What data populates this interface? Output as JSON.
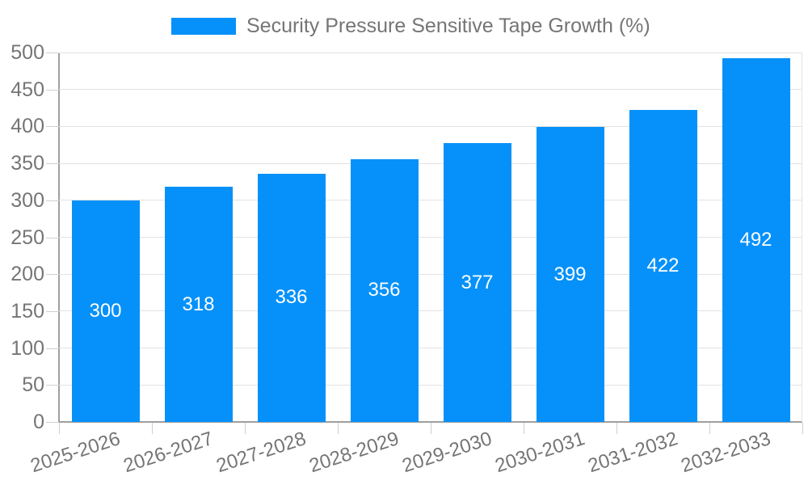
{
  "chart_data": {
    "type": "bar",
    "title": "Security Pressure Sensitive Tape Growth (%)",
    "legend": {
      "label": "Security Pressure Sensitive Tape Growth (%)",
      "position": "top"
    },
    "categories": [
      "2025-2026",
      "2026-2027",
      "2027-2028",
      "2028-2029",
      "2029-2030",
      "2030-2031",
      "2031-2032",
      "2032-2033"
    ],
    "values": [
      300,
      318,
      336,
      356,
      377,
      399,
      422,
      492
    ],
    "xlabel": "",
    "ylabel": "",
    "ylim": [
      0,
      500
    ],
    "yticks": [
      0,
      50,
      100,
      150,
      200,
      250,
      300,
      350,
      400,
      450,
      500
    ],
    "grid": true,
    "value_labels_shown": true
  },
  "colors": {
    "bar": "#0691fa",
    "text": "#757575",
    "grid": "#e2e2e2",
    "tick": "#d0d0d0",
    "axis": "#9f9f9f",
    "value_label": "#ffffff",
    "background": "#ffffff"
  }
}
